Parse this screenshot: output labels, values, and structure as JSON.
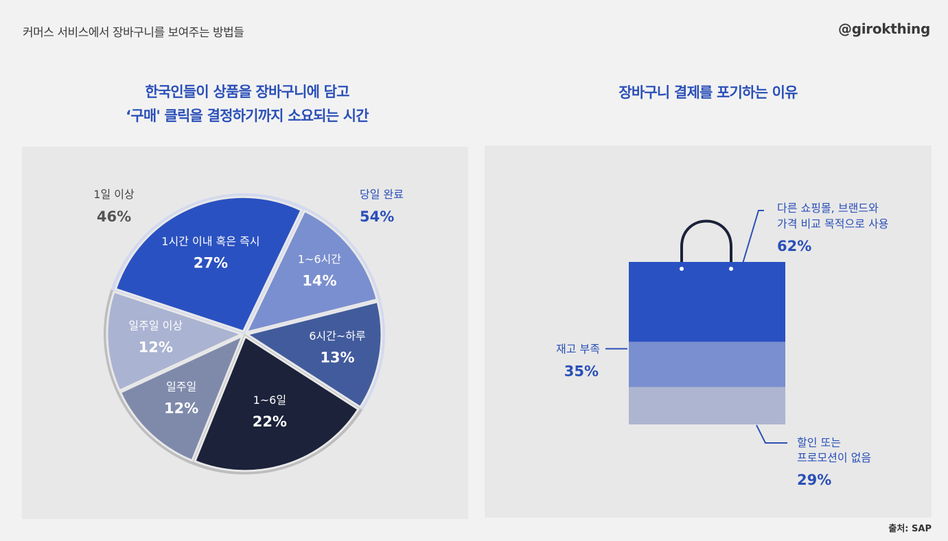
{
  "header": {
    "title": "커머스 서비스에서 장바구니를 보여주는 방법들",
    "brand": "@girokthing"
  },
  "footer": {
    "source": "출처: SAP"
  },
  "colors": {
    "title_blue": "#2a4fb8",
    "c27": "#2a51c1",
    "c14": "#7a8fcf",
    "c13": "#425b9c",
    "c22": "#1b2239",
    "c12a": "#7f8aab",
    "c12b": "#aab3d1",
    "ring_blue": "#d3d9ee",
    "ring_grey": "#bdbdbf",
    "bag_top": "#2a51c1",
    "bag_mid": "#7a8fcf",
    "bag_bot": "#adb5d1",
    "handle": "#1b2239"
  },
  "chart_data": [
    {
      "type": "pie",
      "title": [
        "한국인들이 상품을 장바구니에 담고",
        "‘구매' 클릭을 결정하기까지 소요되는 시간"
      ],
      "groups": [
        {
          "label": "당일 완료",
          "value": "54%"
        },
        {
          "label": "1일 이상",
          "value": "46%"
        }
      ],
      "slices": [
        {
          "label": "1시간 이내 혹은 즉시",
          "value": 27,
          "display": "27%",
          "group": 0
        },
        {
          "label": "1~6시간",
          "value": 14,
          "display": "14%",
          "group": 0
        },
        {
          "label": "6시간~하루",
          "value": 13,
          "display": "13%",
          "group": 0
        },
        {
          "label": "1~6일",
          "value": 22,
          "display": "22%",
          "group": 1
        },
        {
          "label": "일주일",
          "value": 12,
          "display": "12%",
          "group": 1
        },
        {
          "label": "일주일 이상",
          "value": 12,
          "display": "12%",
          "group": 1
        }
      ]
    },
    {
      "type": "bar",
      "title": "장바구니 결제를 포기하는 이유",
      "segments": [
        {
          "label": [
            "다른 쇼핑몰, 브랜드와",
            "가격 비교 목적으로 사용"
          ],
          "value": 62,
          "display": "62%"
        },
        {
          "label": [
            "재고 부족"
          ],
          "value": 35,
          "display": "35%"
        },
        {
          "label": [
            "할인 또는",
            "프로모션이 없음"
          ],
          "value": 29,
          "display": "29%"
        }
      ]
    }
  ]
}
